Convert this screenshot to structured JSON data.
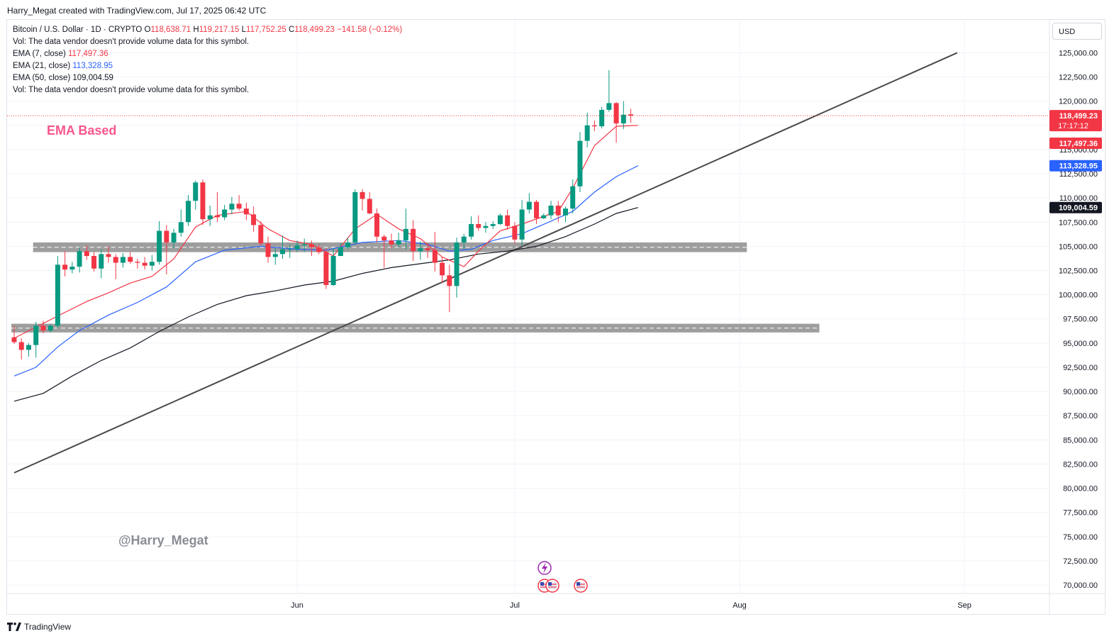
{
  "header": {
    "credit": "Harry_Megat created with TradingView.com, Jul 17, 2025 06:42 UTC"
  },
  "legend": {
    "symbol": "Bitcoin / U.S. Dollar · 1D · CRYPTO",
    "o_label": "O",
    "o_value": "118,638.71",
    "h_label": "H",
    "h_value": "119,217.15",
    "l_label": "L",
    "l_value": "117,752.25",
    "c_label": "C",
    "c_value": "118,499.23",
    "change": "−141.58 (−0.12%)",
    "vol1": "Vol: The data vendor doesn't provide volume data for this symbol.",
    "ema7_label": "EMA (7, close)",
    "ema7_value": "117,497.36",
    "ema21_label": "EMA (21, close)",
    "ema21_value": "113,328.95",
    "ema50_label": "EMA (50, close)",
    "ema50_value": "109,004.59",
    "vol2": "Vol: The data vendor doesn't provide volume data for this symbol."
  },
  "annotation": {
    "text": "EMA Based"
  },
  "watermark": {
    "text": "@Harry_Megat"
  },
  "currency": {
    "label": "USD"
  },
  "footer": {
    "brand": "TradingView"
  },
  "colors": {
    "up": "#089981",
    "down": "#f23645",
    "ema7": "#f23645",
    "ema21": "#2962ff",
    "ema50": "#131722",
    "trendline": "#4a4a4a",
    "zone": "#9e9e9e"
  },
  "chart_data": {
    "type": "candlestick",
    "x_labels": [
      "Jun",
      "Jul",
      "Aug",
      "Sep"
    ],
    "y_ticks": [
      "125,000.00",
      "122,500.00",
      "120,000.00",
      "117,500.00",
      "115,000.00",
      "112,500.00",
      "110,000.00",
      "107,500.00",
      "105,000.00",
      "102,500.00",
      "100,000.00",
      "97,500.00",
      "95,000.00",
      "92,500.00",
      "90,000.00",
      "87,500.00",
      "85,000.00",
      "82,500.00",
      "80,000.00",
      "77,500.00",
      "75,000.00",
      "72,500.00",
      "70,000.00"
    ],
    "ylim": [
      69200,
      128400
    ],
    "price_badges": [
      {
        "label": "118,499.23",
        "sub": "17:17:12",
        "value": 118499.23,
        "color": "#f23645"
      },
      {
        "label": "117,497.36",
        "value": 117497.36,
        "color": "#f23645"
      },
      {
        "label": "113,328.95",
        "value": 113328.95,
        "color": "#2962ff"
      },
      {
        "label": "109,004.59",
        "value": 109004.59,
        "color": "#131722"
      }
    ],
    "last_price": 118499.23,
    "candles": [
      {
        "date": "2025-04-23",
        "o": 95600,
        "h": 96800,
        "l": 94900,
        "c": 95100
      },
      {
        "date": "2025-04-24",
        "o": 95100,
        "h": 95500,
        "l": 93300,
        "c": 94300
      },
      {
        "date": "2025-04-25",
        "o": 94300,
        "h": 95000,
        "l": 93600,
        "c": 94800
      },
      {
        "date": "2025-04-26",
        "o": 94800,
        "h": 97200,
        "l": 93500,
        "c": 96800
      },
      {
        "date": "2025-04-27",
        "o": 96800,
        "h": 97300,
        "l": 96000,
        "c": 96300
      },
      {
        "date": "2025-04-28",
        "o": 96300,
        "h": 97000,
        "l": 96100,
        "c": 96800
      },
      {
        "date": "2025-04-29",
        "o": 96800,
        "h": 104000,
        "l": 96500,
        "c": 103100
      },
      {
        "date": "2025-04-30",
        "o": 103100,
        "h": 104500,
        "l": 101900,
        "c": 102600
      },
      {
        "date": "2025-05-01",
        "o": 102600,
        "h": 103400,
        "l": 102200,
        "c": 102900
      },
      {
        "date": "2025-05-02",
        "o": 102900,
        "h": 104900,
        "l": 102300,
        "c": 104500
      },
      {
        "date": "2025-05-03",
        "o": 104500,
        "h": 105100,
        "l": 103600,
        "c": 104000
      },
      {
        "date": "2025-05-04",
        "o": 104000,
        "h": 104400,
        "l": 102400,
        "c": 102700
      },
      {
        "date": "2025-05-05",
        "o": 102700,
        "h": 104700,
        "l": 101700,
        "c": 104200
      },
      {
        "date": "2025-05-06",
        "o": 104200,
        "h": 105000,
        "l": 103300,
        "c": 103900
      },
      {
        "date": "2025-05-07",
        "o": 103900,
        "h": 104200,
        "l": 101600,
        "c": 103300
      },
      {
        "date": "2025-05-08",
        "o": 103300,
        "h": 104300,
        "l": 102800,
        "c": 103900
      },
      {
        "date": "2025-05-09",
        "o": 103900,
        "h": 104400,
        "l": 103200,
        "c": 103400
      },
      {
        "date": "2025-05-10",
        "o": 103400,
        "h": 103700,
        "l": 102700,
        "c": 103300
      },
      {
        "date": "2025-05-11",
        "o": 103300,
        "h": 103900,
        "l": 102600,
        "c": 103000
      },
      {
        "date": "2025-05-12",
        "o": 103000,
        "h": 104100,
        "l": 102500,
        "c": 103400
      },
      {
        "date": "2025-05-13",
        "o": 103400,
        "h": 107600,
        "l": 103100,
        "c": 106600
      },
      {
        "date": "2025-05-14",
        "o": 106600,
        "h": 107200,
        "l": 102100,
        "c": 105400
      },
      {
        "date": "2025-05-15",
        "o": 105400,
        "h": 106800,
        "l": 104800,
        "c": 106400
      },
      {
        "date": "2025-05-16",
        "o": 106400,
        "h": 108800,
        "l": 106000,
        "c": 107500
      },
      {
        "date": "2025-05-17",
        "o": 107500,
        "h": 110300,
        "l": 107100,
        "c": 109700
      },
      {
        "date": "2025-05-18",
        "o": 109700,
        "h": 111800,
        "l": 108800,
        "c": 111600
      },
      {
        "date": "2025-05-19",
        "o": 111600,
        "h": 111900,
        "l": 107200,
        "c": 107800
      },
      {
        "date": "2025-05-20",
        "o": 107800,
        "h": 109200,
        "l": 107100,
        "c": 108200
      },
      {
        "date": "2025-05-21",
        "o": 108200,
        "h": 110600,
        "l": 107500,
        "c": 108000
      },
      {
        "date": "2025-05-22",
        "o": 108000,
        "h": 109300,
        "l": 107700,
        "c": 108800
      },
      {
        "date": "2025-05-23",
        "o": 108800,
        "h": 110100,
        "l": 108300,
        "c": 109400
      },
      {
        "date": "2025-05-24",
        "o": 109400,
        "h": 110300,
        "l": 108700,
        "c": 108900
      },
      {
        "date": "2025-05-25",
        "o": 108900,
        "h": 109500,
        "l": 107700,
        "c": 108300
      },
      {
        "date": "2025-05-26",
        "o": 108300,
        "h": 109100,
        "l": 106500,
        "c": 107200
      },
      {
        "date": "2025-05-27",
        "o": 107200,
        "h": 107600,
        "l": 105100,
        "c": 105300
      },
      {
        "date": "2025-05-28",
        "o": 105300,
        "h": 106000,
        "l": 103300,
        "c": 103900
      },
      {
        "date": "2025-05-29",
        "o": 103900,
        "h": 104800,
        "l": 103100,
        "c": 104200
      },
      {
        "date": "2025-05-30",
        "o": 104200,
        "h": 106100,
        "l": 103700,
        "c": 104700
      },
      {
        "date": "2025-05-31",
        "o": 104700,
        "h": 105200,
        "l": 103800,
        "c": 104700
      },
      {
        "date": "2025-06-01",
        "o": 104700,
        "h": 105600,
        "l": 104400,
        "c": 105100
      },
      {
        "date": "2025-06-02",
        "o": 105100,
        "h": 105800,
        "l": 104400,
        "c": 105200
      },
      {
        "date": "2025-06-03",
        "o": 105200,
        "h": 105600,
        "l": 104000,
        "c": 104900
      },
      {
        "date": "2025-06-04",
        "o": 104900,
        "h": 105200,
        "l": 104200,
        "c": 104400
      },
      {
        "date": "2025-06-05",
        "o": 104400,
        "h": 104800,
        "l": 100600,
        "c": 101000
      },
      {
        "date": "2025-06-06",
        "o": 101000,
        "h": 104800,
        "l": 100900,
        "c": 104000
      },
      {
        "date": "2025-06-07",
        "o": 104000,
        "h": 105300,
        "l": 104000,
        "c": 104900
      },
      {
        "date": "2025-06-08",
        "o": 104900,
        "h": 105900,
        "l": 104700,
        "c": 105400
      },
      {
        "date": "2025-06-09",
        "o": 105400,
        "h": 110900,
        "l": 105200,
        "c": 110600
      },
      {
        "date": "2025-06-10",
        "o": 110600,
        "h": 110900,
        "l": 108700,
        "c": 109900
      },
      {
        "date": "2025-06-11",
        "o": 109900,
        "h": 110600,
        "l": 108300,
        "c": 108400
      },
      {
        "date": "2025-06-12",
        "o": 108400,
        "h": 108900,
        "l": 105400,
        "c": 106000
      },
      {
        "date": "2025-06-13",
        "o": 106000,
        "h": 106200,
        "l": 102800,
        "c": 105600
      },
      {
        "date": "2025-06-14",
        "o": 105600,
        "h": 106300,
        "l": 104800,
        "c": 105200
      },
      {
        "date": "2025-06-15",
        "o": 105200,
        "h": 106400,
        "l": 104900,
        "c": 105600
      },
      {
        "date": "2025-06-16",
        "o": 105600,
        "h": 108900,
        "l": 104700,
        "c": 106800
      },
      {
        "date": "2025-06-17",
        "o": 106800,
        "h": 107700,
        "l": 103500,
        "c": 104500
      },
      {
        "date": "2025-06-18",
        "o": 104500,
        "h": 105500,
        "l": 103600,
        "c": 104800
      },
      {
        "date": "2025-06-19",
        "o": 104800,
        "h": 105300,
        "l": 103800,
        "c": 104600
      },
      {
        "date": "2025-06-20",
        "o": 104600,
        "h": 106500,
        "l": 102400,
        "c": 103300
      },
      {
        "date": "2025-06-21",
        "o": 103300,
        "h": 103900,
        "l": 101200,
        "c": 102000
      },
      {
        "date": "2025-06-22",
        "o": 102000,
        "h": 103100,
        "l": 98200,
        "c": 100900
      },
      {
        "date": "2025-06-23",
        "o": 100900,
        "h": 105900,
        "l": 99700,
        "c": 105400
      },
      {
        "date": "2025-06-24",
        "o": 105400,
        "h": 106300,
        "l": 104700,
        "c": 106000
      },
      {
        "date": "2025-06-25",
        "o": 106000,
        "h": 108100,
        "l": 105700,
        "c": 107300
      },
      {
        "date": "2025-06-26",
        "o": 107300,
        "h": 108200,
        "l": 106600,
        "c": 106900
      },
      {
        "date": "2025-06-27",
        "o": 106900,
        "h": 107500,
        "l": 106400,
        "c": 107100
      },
      {
        "date": "2025-06-28",
        "o": 107100,
        "h": 107600,
        "l": 106800,
        "c": 107300
      },
      {
        "date": "2025-06-29",
        "o": 107300,
        "h": 108400,
        "l": 107200,
        "c": 108200
      },
      {
        "date": "2025-06-30",
        "o": 108200,
        "h": 108800,
        "l": 106700,
        "c": 107100
      },
      {
        "date": "2025-07-01",
        "o": 107100,
        "h": 107500,
        "l": 105300,
        "c": 105700
      },
      {
        "date": "2025-07-02",
        "o": 105700,
        "h": 109800,
        "l": 105100,
        "c": 108800
      },
      {
        "date": "2025-07-03",
        "o": 108800,
        "h": 110500,
        "l": 108400,
        "c": 109600
      },
      {
        "date": "2025-07-04",
        "o": 109600,
        "h": 109800,
        "l": 107300,
        "c": 107900
      },
      {
        "date": "2025-07-05",
        "o": 107900,
        "h": 108400,
        "l": 107800,
        "c": 108200
      },
      {
        "date": "2025-07-06",
        "o": 108200,
        "h": 109700,
        "l": 107800,
        "c": 109200
      },
      {
        "date": "2025-07-07",
        "o": 109200,
        "h": 109700,
        "l": 107500,
        "c": 108200
      },
      {
        "date": "2025-07-08",
        "o": 108200,
        "h": 109100,
        "l": 107500,
        "c": 108900
      },
      {
        "date": "2025-07-09",
        "o": 108900,
        "h": 111900,
        "l": 108400,
        "c": 111200
      },
      {
        "date": "2025-07-10",
        "o": 111200,
        "h": 116800,
        "l": 110600,
        "c": 115900
      },
      {
        "date": "2025-07-11",
        "o": 115900,
        "h": 118800,
        "l": 115200,
        "c": 117500
      },
      {
        "date": "2025-07-12",
        "o": 117500,
        "h": 118000,
        "l": 116900,
        "c": 117400
      },
      {
        "date": "2025-07-13",
        "o": 117400,
        "h": 119400,
        "l": 117200,
        "c": 119100
      },
      {
        "date": "2025-07-14",
        "o": 119100,
        "h": 123200,
        "l": 118900,
        "c": 119800
      },
      {
        "date": "2025-07-15",
        "o": 119800,
        "h": 119900,
        "l": 115700,
        "c": 117700
      },
      {
        "date": "2025-07-16",
        "o": 117700,
        "h": 120000,
        "l": 117100,
        "c": 118600
      },
      {
        "date": "2025-07-17",
        "o": 118638.71,
        "h": 119217.15,
        "l": 117752.25,
        "c": 118499.23
      }
    ],
    "ema7": [
      [
        0,
        95500
      ],
      [
        6,
        97800
      ],
      [
        10,
        99300
      ],
      [
        13,
        100200
      ],
      [
        16,
        101200
      ],
      [
        19,
        101900
      ],
      [
        22,
        103700
      ],
      [
        25,
        107000
      ],
      [
        28,
        108200
      ],
      [
        32,
        108600
      ],
      [
        35,
        106800
      ],
      [
        38,
        105600
      ],
      [
        41,
        105200
      ],
      [
        44,
        104000
      ],
      [
        47,
        106800
      ],
      [
        50,
        108300
      ],
      [
        53,
        106800
      ],
      [
        56,
        105800
      ],
      [
        59,
        103900
      ],
      [
        62,
        102900
      ],
      [
        64,
        104500
      ],
      [
        67,
        106600
      ],
      [
        70,
        107300
      ],
      [
        73,
        108100
      ],
      [
        75,
        108600
      ],
      [
        77,
        111000
      ],
      [
        80,
        115400
      ],
      [
        83,
        117400
      ],
      [
        86,
        117497.36
      ]
    ],
    "ema21": [
      [
        0,
        91600
      ],
      [
        3,
        92500
      ],
      [
        6,
        94600
      ],
      [
        9,
        96300
      ],
      [
        13,
        97900
      ],
      [
        17,
        99200
      ],
      [
        21,
        100800
      ],
      [
        25,
        103400
      ],
      [
        29,
        104600
      ],
      [
        34,
        105000
      ],
      [
        39,
        104700
      ],
      [
        43,
        104600
      ],
      [
        48,
        105400
      ],
      [
        53,
        105600
      ],
      [
        57,
        105200
      ],
      [
        60,
        104500
      ],
      [
        63,
        104700
      ],
      [
        66,
        105600
      ],
      [
        70,
        106300
      ],
      [
        74,
        107600
      ],
      [
        77,
        108600
      ],
      [
        80,
        110600
      ],
      [
        83,
        112200
      ],
      [
        86,
        113328.95
      ]
    ],
    "ema50": [
      [
        0,
        89000
      ],
      [
        4,
        89800
      ],
      [
        8,
        91600
      ],
      [
        12,
        93200
      ],
      [
        16,
        94500
      ],
      [
        20,
        96200
      ],
      [
        24,
        97700
      ],
      [
        28,
        99000
      ],
      [
        32,
        99900
      ],
      [
        36,
        100400
      ],
      [
        40,
        101000
      ],
      [
        44,
        101400
      ],
      [
        48,
        102200
      ],
      [
        52,
        102800
      ],
      [
        56,
        103200
      ],
      [
        60,
        103600
      ],
      [
        64,
        104200
      ],
      [
        68,
        104500
      ],
      [
        72,
        105000
      ],
      [
        76,
        106000
      ],
      [
        80,
        107300
      ],
      [
        83,
        108400
      ],
      [
        86,
        109004.59
      ]
    ],
    "trendline": {
      "start": [
        "2025-04-23",
        81600
      ],
      "end": [
        "2025-08-31",
        125000
      ]
    },
    "zones": [
      {
        "from": "2025-04-26",
        "to": "2025-08-02",
        "low": 104400,
        "high": 105400
      },
      {
        "from": "2025-04-23",
        "to": "2025-08-12",
        "low": 96100,
        "high": 97000
      }
    ]
  }
}
